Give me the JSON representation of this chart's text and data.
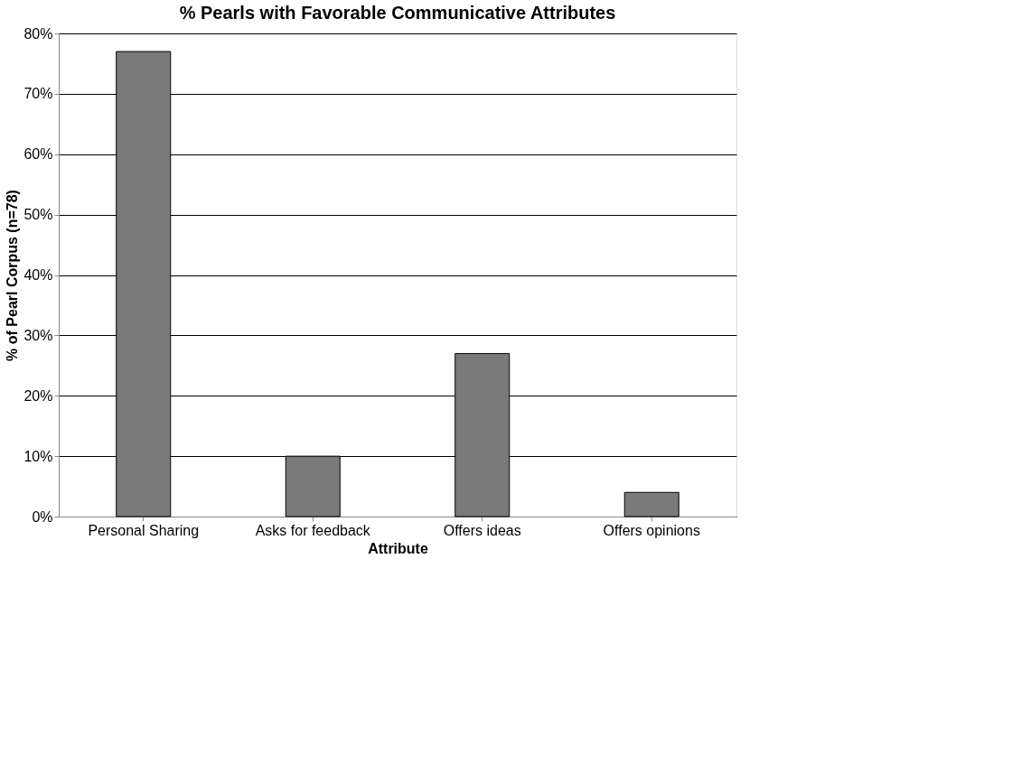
{
  "chart_data": {
    "type": "bar",
    "title": "% Pearls with Favorable Communicative Attributes",
    "xlabel": "Attribute",
    "ylabel": "% of Pearl Corpus (n=78)",
    "categories": [
      "Personal Sharing",
      "Asks for feedback",
      "Offers ideas",
      "Offers opinions"
    ],
    "values": [
      0.77,
      0.1,
      0.27,
      0.04
    ],
    "color": "#7a7a7a",
    "ylim": [
      0,
      0.8
    ],
    "yticks": [
      {
        "value": 0,
        "label": "0%"
      },
      {
        "value": 0.1,
        "label": "10%"
      },
      {
        "value": 0.2,
        "label": "20%"
      },
      {
        "value": 0.3,
        "label": "30%"
      },
      {
        "value": 0.4,
        "label": "40%"
      },
      {
        "value": 0.5,
        "label": "50%"
      },
      {
        "value": 0.6,
        "label": "60%"
      },
      {
        "value": 0.7,
        "label": "70%"
      },
      {
        "value": 0.8,
        "label": "80%"
      }
    ],
    "grid": "y"
  }
}
